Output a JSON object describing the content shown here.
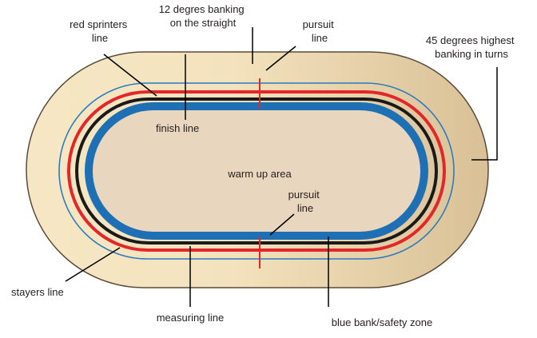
{
  "colors": {
    "outer_track_light": "#f6e7c4",
    "outer_track_dark": "#d9c096",
    "outline": "#5a4a3a",
    "infield": "#e9d6be",
    "blue_band": "#1f6fb5",
    "black_line": "#1a1a1a",
    "red_line": "#e3262a",
    "thin_blue_line": "#2a7bc0",
    "leader": "#000000"
  },
  "labels": {
    "banking_straight": [
      "12 degres banking",
      "on the straight"
    ],
    "red_sprinters": [
      "red sprinters",
      "line"
    ],
    "pursuit_top": [
      "pursuit",
      "line"
    ],
    "banking_turns": [
      "45 degrees highest",
      "banking in turns"
    ],
    "finish_line": "finish line",
    "warm_up": "warm up area",
    "pursuit_bottom": [
      "pursuit",
      "line"
    ],
    "stayers": "stayers line",
    "measuring": "measuring line",
    "blue_bank": "blue bank/safety zone"
  }
}
